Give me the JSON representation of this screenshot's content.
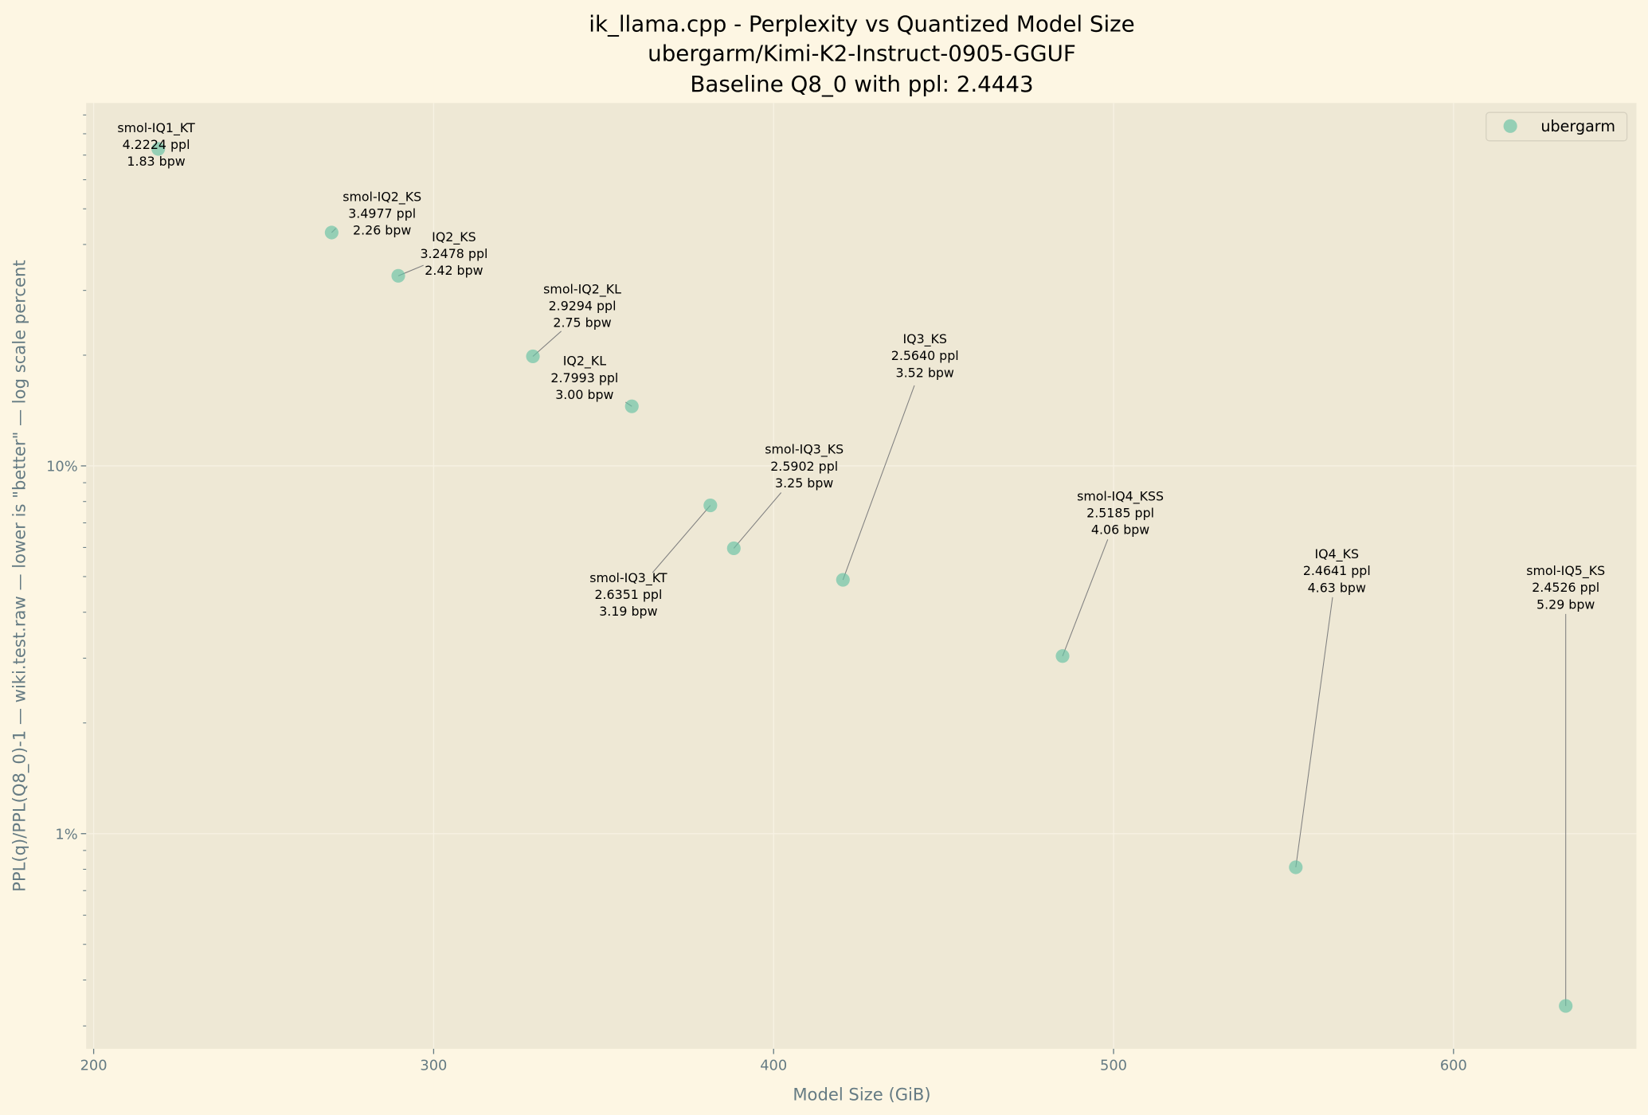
{
  "chart_data": {
    "type": "scatter",
    "title": [
      "ik_llama.cpp - Perplexity vs Quantized Model Size",
      "ubergarm/Kimi-K2-Instruct-0905-GGUF",
      "Baseline Q8_0 with ppl: 2.4443"
    ],
    "xlabel": "Model Size (GiB)",
    "ylabel": "PPL(q)/PPL(Q8_0)-1 — wiki.test.raw — lower is \"better\" — log scale percent",
    "xlim": [
      197.8,
      653.8
    ],
    "ylim": [
      0.26,
      97
    ],
    "yscale": "log",
    "x_ticks": [
      "200",
      "300",
      "400",
      "500",
      "600"
    ],
    "y_ticks": [
      "1%",
      "10%"
    ],
    "grid": true,
    "legend": {
      "placement": "top-right",
      "entries": [
        "ubergarm"
      ]
    },
    "colors": {
      "background": "#fdf6e3",
      "axes_face": "#eee8d5",
      "point": "#66c2a5",
      "axis_text": "#657b83"
    },
    "series": [
      {
        "name": "ubergarm",
        "points": [
          {
            "label": "smol-IQ1_KT",
            "ppl": "4.2224 ppl",
            "bpw": "1.83 bpw",
            "x": 219,
            "y": 72.75
          },
          {
            "label": "smol-IQ2_KS",
            "ppl": "3.4977 ppl",
            "bpw": "2.26 bpw",
            "x": 270,
            "y": 43.1
          },
          {
            "label": "IQ2_KS",
            "ppl": "3.2478 ppl",
            "bpw": "2.42 bpw",
            "x": 289.6,
            "y": 32.87
          },
          {
            "label": "smol-IQ2_KL",
            "ppl": "2.9294 ppl",
            "bpw": "2.75 bpw",
            "x": 329.2,
            "y": 19.85
          },
          {
            "label": "IQ2_KL",
            "ppl": "2.7993 ppl",
            "bpw": "3.00 bpw",
            "x": 358.3,
            "y": 14.52
          },
          {
            "label": "smol-IQ3_KT",
            "ppl": "2.6351 ppl",
            "bpw": "3.19 bpw",
            "x": 381.4,
            "y": 7.81
          },
          {
            "label": "smol-IQ3_KS",
            "ppl": "2.5902 ppl",
            "bpw": "3.25 bpw",
            "x": 388.3,
            "y": 5.97
          },
          {
            "label": "IQ3_KS",
            "ppl": "2.5640 ppl",
            "bpw": "3.52 bpw",
            "x": 420.4,
            "y": 4.9
          },
          {
            "label": "smol-IQ4_KSS",
            "ppl": "2.5185 ppl",
            "bpw": "4.06 bpw",
            "x": 485,
            "y": 3.04
          },
          {
            "label": "IQ4_KS",
            "ppl": "2.4641 ppl",
            "bpw": "4.63 bpw",
            "x": 553.6,
            "y": 0.81
          },
          {
            "label": "smol-IQ5_KS",
            "ppl": "2.4526 ppl",
            "bpw": "5.29 bpw",
            "x": 633,
            "y": 0.34
          }
        ]
      }
    ]
  }
}
